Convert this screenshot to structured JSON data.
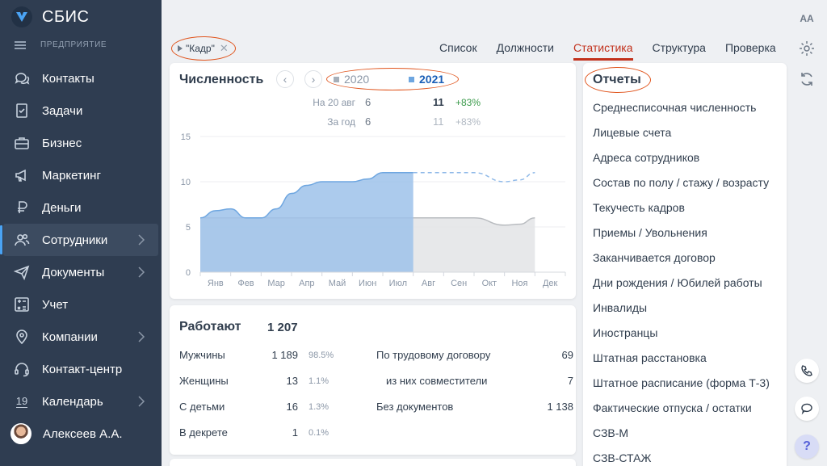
{
  "app": {
    "title": "СБИС",
    "org_label": "ПРЕДПРИЯТИЕ"
  },
  "sidebar": {
    "items": [
      {
        "label": "Контакты",
        "icon": "chat-bubbles-icon",
        "chevron": false,
        "active": false
      },
      {
        "label": "Задачи",
        "icon": "task-list-icon",
        "chevron": false,
        "active": false
      },
      {
        "label": "Бизнес",
        "icon": "briefcase-icon",
        "chevron": false,
        "active": false
      },
      {
        "label": "Маркетинг",
        "icon": "megaphone-icon",
        "chevron": false,
        "active": false
      },
      {
        "label": "Деньги",
        "icon": "ruble-icon",
        "chevron": false,
        "active": false
      },
      {
        "label": "Сотрудники",
        "icon": "people-icon",
        "chevron": true,
        "active": true
      },
      {
        "label": "Документы",
        "icon": "paper-plane-icon",
        "chevron": true,
        "active": false
      },
      {
        "label": "Учет",
        "icon": "calculator-icon",
        "chevron": false,
        "active": false
      },
      {
        "label": "Компании",
        "icon": "map-pin-icon",
        "chevron": true,
        "active": false
      },
      {
        "label": "Контакт-центр",
        "icon": "headset-icon",
        "chevron": false,
        "active": false
      },
      {
        "label": "Календарь",
        "icon": "calendar-icon",
        "chevron": true,
        "active": false
      }
    ],
    "calendar_day": "19",
    "user": "Алексеев А.А."
  },
  "filter": {
    "label": "\"Кадр\""
  },
  "tabs": [
    {
      "label": "Список",
      "active": false
    },
    {
      "label": "Должности",
      "active": false
    },
    {
      "label": "Статистика",
      "active": true
    },
    {
      "label": "Структура",
      "active": false
    },
    {
      "label": "Проверка",
      "active": false
    }
  ],
  "rail": {
    "font_button": "AA",
    "help": "?"
  },
  "headcount": {
    "title": "Численность",
    "year_prev": "2020",
    "year_curr": "2021",
    "rows": [
      {
        "label": "На 20 авг",
        "prev": "6",
        "curr": "11",
        "delta": "+83%"
      },
      {
        "label": "За год",
        "prev": "6",
        "curr": "11",
        "delta": "+83%"
      }
    ]
  },
  "chart_data": {
    "type": "area",
    "categories": [
      "Янв",
      "Фев",
      "Мар",
      "Апр",
      "Май",
      "Июн",
      "Июл",
      "Авг",
      "Сен",
      "Окт",
      "Ноя",
      "Дек"
    ],
    "ylim": [
      0,
      15
    ],
    "yticks": [
      0,
      5,
      10,
      15
    ],
    "series": [
      {
        "name": "2020",
        "color": "#e3e4e6",
        "line_color": "#b9bcc0",
        "x": [
          0,
          0.5,
          1,
          1.5,
          2,
          3,
          4,
          5,
          6,
          7,
          8,
          9,
          10,
          10.5,
          11
        ],
        "values": [
          6,
          6,
          6,
          6,
          6,
          6,
          6,
          6,
          6,
          6,
          6,
          6,
          5.2,
          5.3,
          6
        ]
      },
      {
        "name": "2021",
        "color": "#9dc2ea",
        "line_color": "#6ea6e0",
        "x": [
          0,
          0.5,
          1,
          1.5,
          2,
          2.5,
          3,
          3.5,
          4,
          4.5,
          5,
          5.5,
          6,
          6.5,
          7
        ],
        "values": [
          6,
          6.8,
          7,
          6,
          6,
          7,
          8.7,
          9.6,
          10,
          10,
          10,
          10.3,
          11,
          11,
          11
        ]
      },
      {
        "name": "2021 прогноз",
        "dashed": true,
        "color": "#8fb9e8",
        "x": [
          7,
          8,
          9,
          10,
          10.5,
          11
        ],
        "values": [
          11,
          11,
          11,
          10,
          10.2,
          11
        ]
      }
    ]
  },
  "work": {
    "title": "Работают",
    "total": "1 207",
    "left_rows": [
      {
        "label": "Мужчины",
        "num": "1 189",
        "pct": "98.5%"
      },
      {
        "label": "Женщины",
        "num": "13",
        "pct": "1.1%"
      },
      {
        "label": "С детьми",
        "num": "16",
        "pct": "1.3%"
      },
      {
        "label": "В декрете",
        "num": "1",
        "pct": "0.1%"
      }
    ],
    "right_rows": [
      {
        "label": "По трудовому договору",
        "num": "69"
      },
      {
        "label": "из них совместители",
        "num": "7"
      },
      {
        "label": "Без документов",
        "num": "1 138"
      }
    ]
  },
  "reports": {
    "title": "Отчеты",
    "items": [
      "Среднесписочная численность",
      "Лицевые счета",
      "Адреса сотрудников",
      "Состав по полу / стажу / возрасту",
      "Текучесть кадров",
      "Приемы / Увольнения",
      "Заканчивается договор",
      "Дни рождения / Юбилей работы",
      "Инвалиды",
      "Иностранцы",
      "Штатная расстановка",
      "Штатное расписание (форма Т-3)",
      "Фактические отпуска / остатки",
      "СЗВ-М",
      "СЗВ-СТАЖ"
    ]
  }
}
